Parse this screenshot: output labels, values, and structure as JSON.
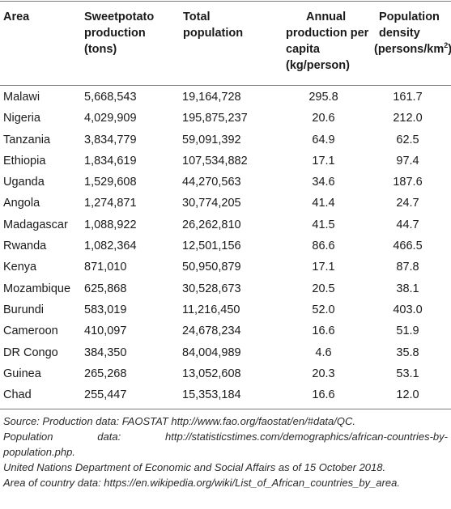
{
  "table": {
    "headers": {
      "area": "Area",
      "production_l1": "Sweetpotato",
      "production_l2": "production",
      "production_l3": "(tons)",
      "population_l1": "Total",
      "population_l2": "population",
      "percapita_l1": "Annual",
      "percapita_l2": "production per",
      "percapita_l3": "capita",
      "percapita_l4": "(kg/person)",
      "density_l1": "Population",
      "density_l2": "density",
      "density_l3": "(persons/km",
      "density_sup": "2",
      "density_close": ")"
    },
    "rows": [
      {
        "area": "Malawi",
        "production": "5,668,543",
        "population": "19,164,728",
        "per_capita": "295.8",
        "density": "161.7"
      },
      {
        "area": "Nigeria",
        "production": "4,029,909",
        "population": "195,875,237",
        "per_capita": "20.6",
        "density": "212.0"
      },
      {
        "area": "Tanzania",
        "production": "3,834,779",
        "population": "59,091,392",
        "per_capita": "64.9",
        "density": "62.5"
      },
      {
        "area": "Ethiopia",
        "production": "1,834,619",
        "population": "107,534,882",
        "per_capita": "17.1",
        "density": "97.4"
      },
      {
        "area": "Uganda",
        "production": "1,529,608",
        "population": "44,270,563",
        "per_capita": "34.6",
        "density": "187.6"
      },
      {
        "area": "Angola",
        "production": "1,274,871",
        "population": "30,774,205",
        "per_capita": "41.4",
        "density": "24.7"
      },
      {
        "area": "Madagascar",
        "production": "1,088,922",
        "population": "26,262,810",
        "per_capita": "41.5",
        "density": "44.7"
      },
      {
        "area": "Rwanda",
        "production": "1,082,364",
        "population": "12,501,156",
        "per_capita": "86.6",
        "density": "466.5"
      },
      {
        "area": "Kenya",
        "production": "871,010",
        "population": "50,950,879",
        "per_capita": "17.1",
        "density": "87.8"
      },
      {
        "area": "Mozambique",
        "production": "625,868",
        "population": "30,528,673",
        "per_capita": "20.5",
        "density": "38.1"
      },
      {
        "area": "Burundi",
        "production": "583,019",
        "population": "11,216,450",
        "per_capita": "52.0",
        "density": "403.0"
      },
      {
        "area": "Cameroon",
        "production": "410,097",
        "population": "24,678,234",
        "per_capita": "16.6",
        "density": "51.9"
      },
      {
        "area": "DR Congo",
        "production": "384,350",
        "population": "84,004,989",
        "per_capita": "4.6",
        "density": "35.8"
      },
      {
        "area": "Guinea",
        "production": "265,268",
        "population": "13,052,608",
        "per_capita": "20.3",
        "density": "53.1"
      },
      {
        "area": "Chad",
        "production": "255,447",
        "population": "15,353,184",
        "per_capita": "16.6",
        "density": "12.0"
      }
    ]
  },
  "notes": {
    "line1": "Source: Production data: FAOSTAT http://www.fao.org/faostat/en/#data/QC.",
    "line2_a": "Population",
    "line2_b": "data:",
    "line2_c": "http://statisticstimes.com/demographics/african-countries-by-",
    "line3": "population.php.",
    "line4": "United Nations Department of Economic and Social Affairs as of 15 October 2018.",
    "line5": "Area of country data: https://en.wikipedia.org/wiki/List_of_African_countries_by_area."
  }
}
